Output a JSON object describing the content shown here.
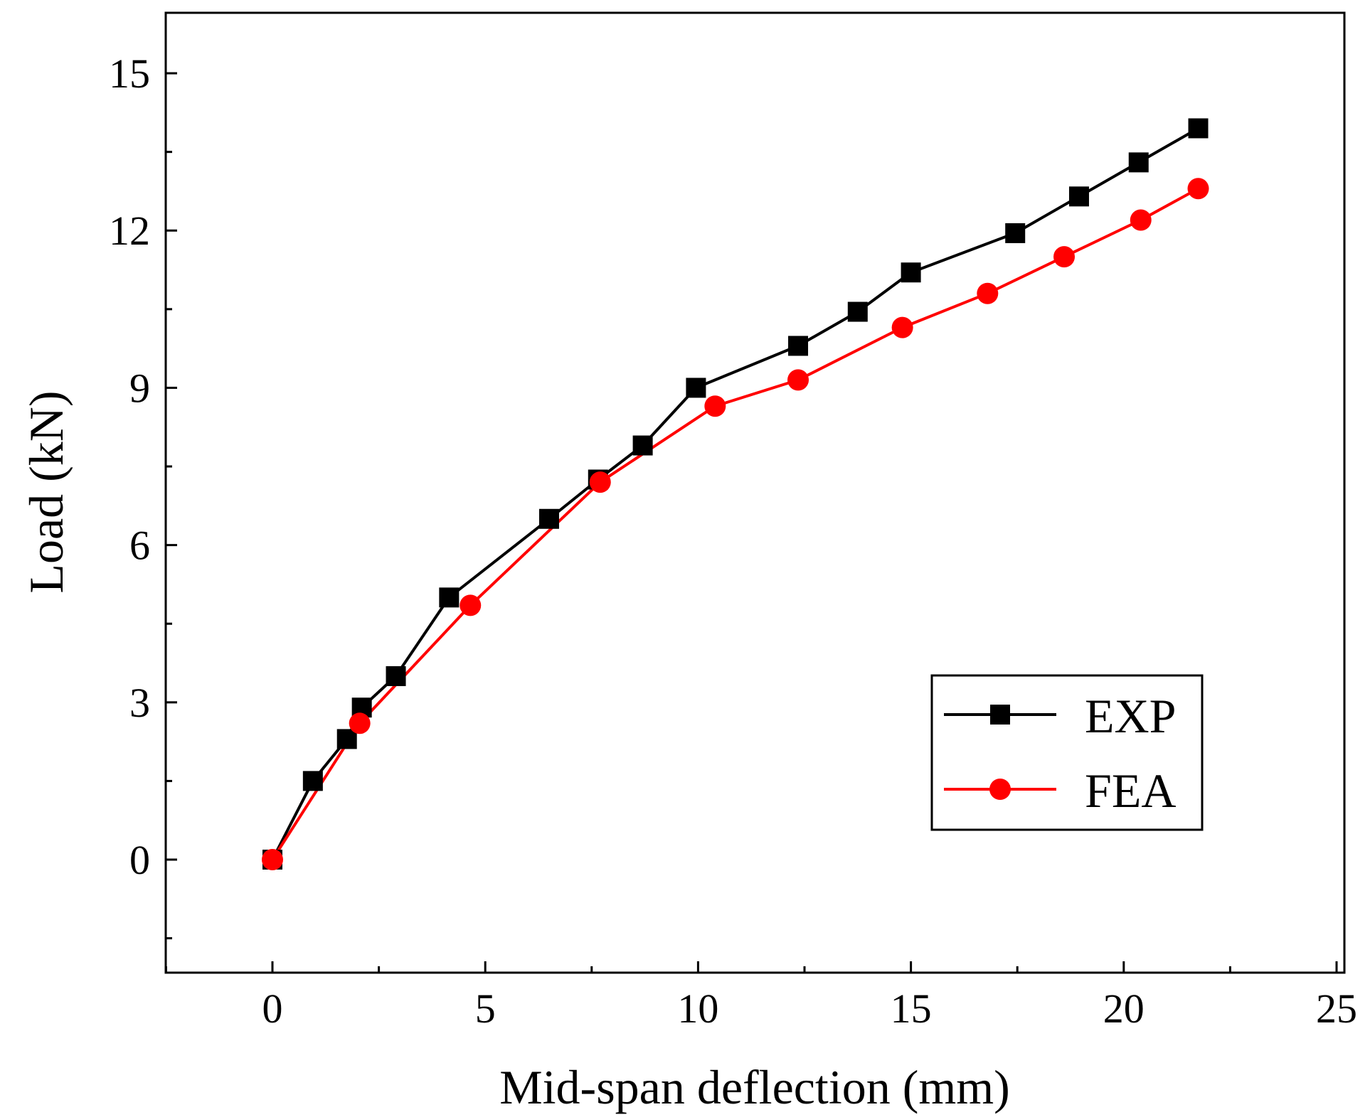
{
  "chart_data": {
    "type": "line",
    "title": "",
    "xlabel": "Mid-span deflection (mm)",
    "ylabel": "Load (kN)",
    "xlim": [
      -2.5,
      25
    ],
    "ylim": [
      -2,
      16
    ],
    "xticks": [
      0,
      5,
      10,
      15,
      20,
      25
    ],
    "yticks": [
      0,
      3,
      6,
      9,
      12,
      15
    ],
    "xtick_labels": [
      "0",
      "5",
      "10",
      "15",
      "20",
      "25"
    ],
    "ytick_labels": [
      "0",
      "3",
      "6",
      "9",
      "12",
      "15"
    ],
    "grid": false,
    "legend_position": "bottom-right",
    "series": [
      {
        "name": "EXP",
        "color": "#000000",
        "marker": "square",
        "x": [
          0,
          0.95,
          1.75,
          2.1,
          2.9,
          4.15,
          6.5,
          7.65,
          8.7,
          9.95,
          12.35,
          13.75,
          15.0,
          17.45,
          18.95,
          20.35,
          21.75
        ],
        "y": [
          0,
          1.5,
          2.3,
          2.9,
          3.5,
          5.0,
          6.5,
          7.25,
          7.9,
          9.0,
          9.8,
          10.45,
          11.2,
          11.95,
          12.65,
          13.3,
          13.95
        ]
      },
      {
        "name": "FEA",
        "color": "#ff0000",
        "marker": "circle",
        "x": [
          0,
          2.05,
          4.65,
          7.7,
          10.4,
          12.35,
          14.8,
          16.8,
          18.6,
          20.4,
          21.75
        ],
        "y": [
          0,
          2.6,
          4.85,
          7.2,
          8.65,
          9.15,
          10.15,
          10.8,
          11.5,
          12.2,
          12.8
        ]
      }
    ]
  }
}
